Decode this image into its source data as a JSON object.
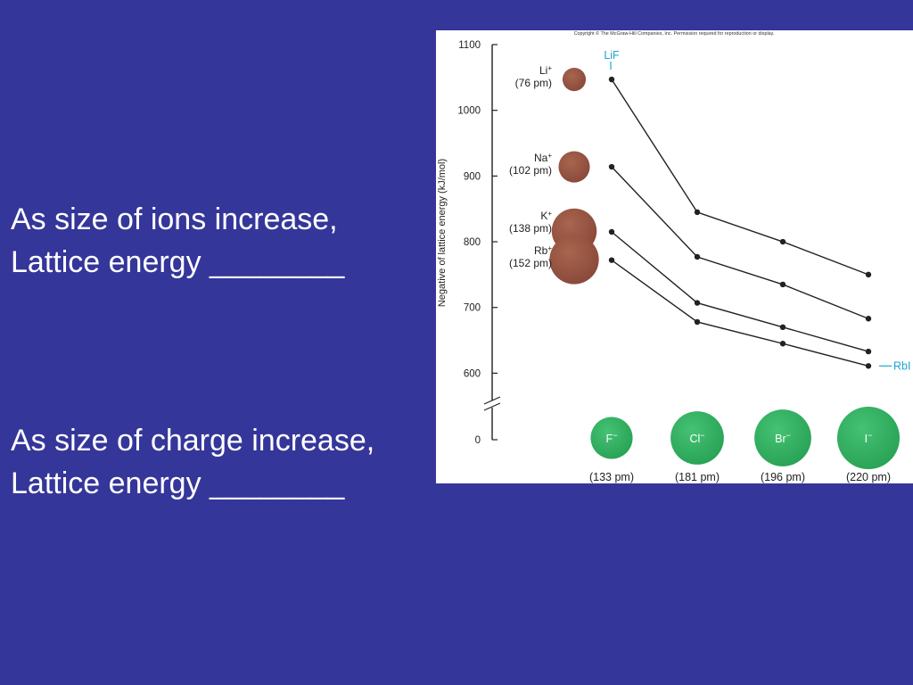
{
  "slide": {
    "statement_1": {
      "line1": "As size of ions increase,",
      "line2": "Lattice energy ________"
    },
    "statement_2": {
      "line1": "As size of charge increase,",
      "line2": "Lattice energy ________"
    }
  },
  "colors": {
    "background": "#353699",
    "text": "#ffffff",
    "cation": "#8b4a3a",
    "anion": "#2aa457",
    "callout": "#1aa6d8",
    "line": "#222222"
  },
  "chart_data": {
    "type": "line",
    "copyright": "Copyright © The McGraw-Hill Companies, Inc. Permission required for reproduction or display.",
    "title": "",
    "xlabel": "",
    "ylabel": "Negative of lattice energy (kJ/mol)",
    "ylim": [
      0,
      1100
    ],
    "axis_break": "between 0 and 600",
    "yticks": [
      {
        "value": 1100,
        "label": "1100"
      },
      {
        "value": 1000,
        "label": "1000"
      },
      {
        "value": 900,
        "label": "900"
      },
      {
        "value": 800,
        "label": "800"
      },
      {
        "value": 700,
        "label": "700"
      },
      {
        "value": 600,
        "label": "600"
      },
      {
        "value": 0,
        "label": "0"
      }
    ],
    "categories": [
      {
        "ion": "F",
        "charge": "−",
        "radius": "(133 pm)"
      },
      {
        "ion": "Cl",
        "charge": "−",
        "radius": "(181 pm)"
      },
      {
        "ion": "Br",
        "charge": "−",
        "radius": "(196 pm)"
      },
      {
        "ion": "I",
        "charge": "−",
        "radius": "(220 pm)"
      }
    ],
    "anion_radius_pm": [
      133,
      181,
      196,
      220
    ],
    "series": [
      {
        "ion": "Li",
        "charge": "+",
        "radius": "(76 pm)",
        "radius_pm": 76,
        "values": [
          1047,
          845,
          800,
          750
        ]
      },
      {
        "ion": "Na",
        "charge": "+",
        "radius": "(102 pm)",
        "radius_pm": 102,
        "values": [
          914,
          777,
          735,
          683
        ]
      },
      {
        "ion": "K",
        "charge": "+",
        "radius": "(138 pm)",
        "radius_pm": 138,
        "values": [
          815,
          707,
          670,
          633
        ]
      },
      {
        "ion": "Rb",
        "charge": "+",
        "radius": "(152 pm)",
        "radius_pm": 152,
        "values": [
          772,
          678,
          645,
          611
        ]
      }
    ],
    "annotations": [
      {
        "text": "LiF",
        "series": 0,
        "point": 0,
        "position": "above"
      },
      {
        "text": "RbI",
        "series": 3,
        "point": 3,
        "position": "right"
      }
    ]
  }
}
